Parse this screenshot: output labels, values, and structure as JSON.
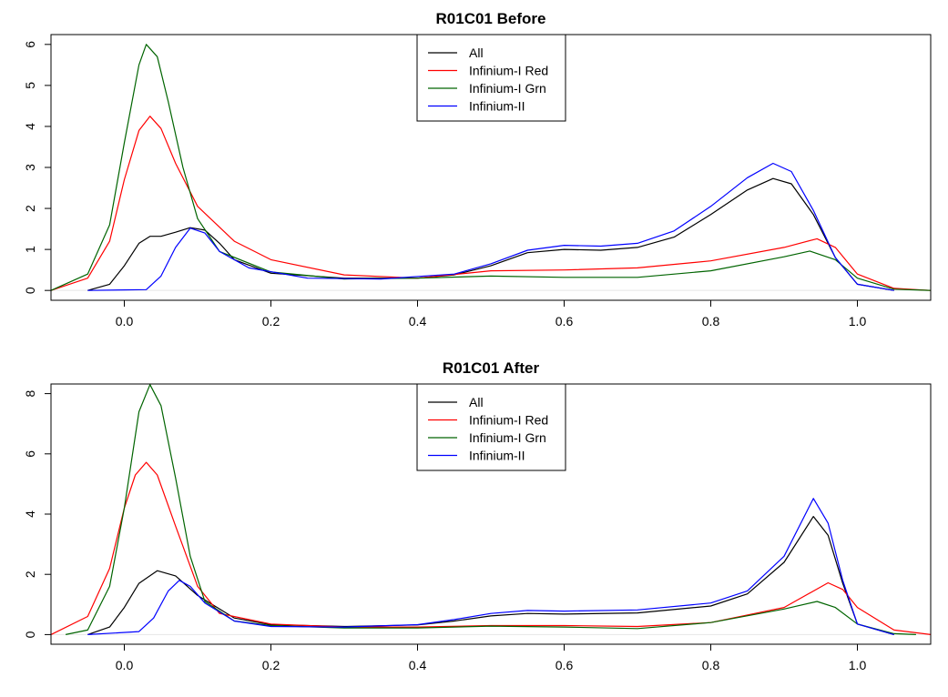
{
  "chart_data": [
    {
      "type": "line",
      "title": "R01C01 Before",
      "xlabel": "",
      "ylabel": "",
      "xlim": [
        -0.1,
        1.1
      ],
      "ylim": [
        0,
        6
      ],
      "x_ticks": [
        "0.0",
        "0.2",
        "0.4",
        "0.6",
        "0.8",
        "1.0"
      ],
      "y_ticks": [
        "0",
        "1",
        "2",
        "3",
        "4",
        "5",
        "6"
      ],
      "grid": false,
      "legend_position": "top-center",
      "series": [
        {
          "name": "All",
          "color": "#000000",
          "points": [
            [
              -0.05,
              0
            ],
            [
              -0.02,
              0.15
            ],
            [
              0.0,
              0.6
            ],
            [
              0.02,
              1.15
            ],
            [
              0.035,
              1.32
            ],
            [
              0.05,
              1.32
            ],
            [
              0.07,
              1.42
            ],
            [
              0.09,
              1.53
            ],
            [
              0.11,
              1.47
            ],
            [
              0.13,
              1.15
            ],
            [
              0.15,
              0.75
            ],
            [
              0.2,
              0.42
            ],
            [
              0.3,
              0.3
            ],
            [
              0.4,
              0.3
            ],
            [
              0.45,
              0.38
            ],
            [
              0.5,
              0.6
            ],
            [
              0.55,
              0.92
            ],
            [
              0.6,
              1.0
            ],
            [
              0.65,
              0.98
            ],
            [
              0.7,
              1.05
            ],
            [
              0.75,
              1.3
            ],
            [
              0.8,
              1.85
            ],
            [
              0.85,
              2.45
            ],
            [
              0.885,
              2.73
            ],
            [
              0.91,
              2.6
            ],
            [
              0.94,
              1.85
            ],
            [
              0.97,
              0.8
            ],
            [
              1.0,
              0.15
            ],
            [
              1.05,
              0
            ]
          ]
        },
        {
          "name": "Infinium-I Red",
          "color": "#ff0000",
          "points": [
            [
              -0.1,
              0
            ],
            [
              -0.05,
              0.3
            ],
            [
              -0.02,
              1.2
            ],
            [
              0.0,
              2.7
            ],
            [
              0.02,
              3.9
            ],
            [
              0.035,
              4.25
            ],
            [
              0.05,
              3.95
            ],
            [
              0.07,
              3.1
            ],
            [
              0.1,
              2.05
            ],
            [
              0.15,
              1.2
            ],
            [
              0.2,
              0.75
            ],
            [
              0.3,
              0.38
            ],
            [
              0.4,
              0.3
            ],
            [
              0.5,
              0.48
            ],
            [
              0.6,
              0.5
            ],
            [
              0.7,
              0.55
            ],
            [
              0.8,
              0.72
            ],
            [
              0.9,
              1.05
            ],
            [
              0.945,
              1.26
            ],
            [
              0.97,
              1.05
            ],
            [
              1.0,
              0.4
            ],
            [
              1.05,
              0.05
            ],
            [
              1.1,
              0
            ]
          ]
        },
        {
          "name": "Infinium-I Grn",
          "color": "#006400",
          "points": [
            [
              -0.1,
              0
            ],
            [
              -0.05,
              0.4
            ],
            [
              -0.02,
              1.6
            ],
            [
              0.0,
              3.6
            ],
            [
              0.02,
              5.5
            ],
            [
              0.03,
              6.0
            ],
            [
              0.045,
              5.7
            ],
            [
              0.06,
              4.6
            ],
            [
              0.08,
              3.0
            ],
            [
              0.1,
              1.75
            ],
            [
              0.13,
              0.95
            ],
            [
              0.2,
              0.45
            ],
            [
              0.3,
              0.28
            ],
            [
              0.4,
              0.3
            ],
            [
              0.5,
              0.35
            ],
            [
              0.6,
              0.32
            ],
            [
              0.7,
              0.32
            ],
            [
              0.8,
              0.48
            ],
            [
              0.9,
              0.82
            ],
            [
              0.935,
              0.96
            ],
            [
              0.97,
              0.75
            ],
            [
              1.0,
              0.3
            ],
            [
              1.05,
              0.03
            ],
            [
              1.1,
              0
            ]
          ]
        },
        {
          "name": "Infinium-II",
          "color": "#0000ff",
          "points": [
            [
              -0.05,
              0
            ],
            [
              0.03,
              0.02
            ],
            [
              0.05,
              0.35
            ],
            [
              0.07,
              1.05
            ],
            [
              0.09,
              1.52
            ],
            [
              0.11,
              1.4
            ],
            [
              0.13,
              0.95
            ],
            [
              0.17,
              0.55
            ],
            [
              0.25,
              0.3
            ],
            [
              0.35,
              0.28
            ],
            [
              0.45,
              0.4
            ],
            [
              0.5,
              0.65
            ],
            [
              0.55,
              0.98
            ],
            [
              0.6,
              1.1
            ],
            [
              0.65,
              1.08
            ],
            [
              0.7,
              1.15
            ],
            [
              0.75,
              1.45
            ],
            [
              0.8,
              2.05
            ],
            [
              0.85,
              2.75
            ],
            [
              0.885,
              3.1
            ],
            [
              0.91,
              2.9
            ],
            [
              0.94,
              1.95
            ],
            [
              0.97,
              0.8
            ],
            [
              1.0,
              0.15
            ],
            [
              1.05,
              0
            ]
          ]
        }
      ]
    },
    {
      "type": "line",
      "title": "R01C01 After",
      "xlabel": "",
      "ylabel": "",
      "xlim": [
        -0.1,
        1.1
      ],
      "ylim": [
        0,
        8
      ],
      "x_ticks": [
        "0.0",
        "0.2",
        "0.4",
        "0.6",
        "0.8",
        "1.0"
      ],
      "y_ticks": [
        "0",
        "2",
        "4",
        "6",
        "8"
      ],
      "grid": false,
      "legend_position": "top-center",
      "series": [
        {
          "name": "All",
          "color": "#000000",
          "points": [
            [
              -0.05,
              0
            ],
            [
              -0.02,
              0.25
            ],
            [
              0.0,
              0.9
            ],
            [
              0.02,
              1.7
            ],
            [
              0.045,
              2.12
            ],
            [
              0.07,
              1.95
            ],
            [
              0.1,
              1.3
            ],
            [
              0.15,
              0.55
            ],
            [
              0.2,
              0.33
            ],
            [
              0.3,
              0.27
            ],
            [
              0.4,
              0.32
            ],
            [
              0.45,
              0.45
            ],
            [
              0.5,
              0.62
            ],
            [
              0.55,
              0.7
            ],
            [
              0.6,
              0.68
            ],
            [
              0.7,
              0.72
            ],
            [
              0.8,
              0.95
            ],
            [
              0.85,
              1.35
            ],
            [
              0.9,
              2.4
            ],
            [
              0.94,
              3.92
            ],
            [
              0.96,
              3.3
            ],
            [
              0.98,
              1.7
            ],
            [
              1.0,
              0.35
            ],
            [
              1.05,
              0
            ]
          ]
        },
        {
          "name": "Infinium-I Red",
          "color": "#ff0000",
          "points": [
            [
              -0.1,
              0
            ],
            [
              -0.05,
              0.6
            ],
            [
              -0.02,
              2.2
            ],
            [
              0.0,
              4.2
            ],
            [
              0.015,
              5.3
            ],
            [
              0.03,
              5.72
            ],
            [
              0.045,
              5.3
            ],
            [
              0.07,
              3.6
            ],
            [
              0.1,
              1.6
            ],
            [
              0.13,
              0.7
            ],
            [
              0.2,
              0.35
            ],
            [
              0.3,
              0.25
            ],
            [
              0.4,
              0.25
            ],
            [
              0.5,
              0.3
            ],
            [
              0.6,
              0.3
            ],
            [
              0.7,
              0.27
            ],
            [
              0.8,
              0.4
            ],
            [
              0.9,
              0.9
            ],
            [
              0.96,
              1.72
            ],
            [
              0.98,
              1.5
            ],
            [
              1.0,
              0.9
            ],
            [
              1.05,
              0.15
            ],
            [
              1.1,
              0
            ]
          ]
        },
        {
          "name": "Infinium-I Grn",
          "color": "#006400",
          "points": [
            [
              -0.08,
              0
            ],
            [
              -0.05,
              0.15
            ],
            [
              -0.02,
              1.6
            ],
            [
              0.0,
              4.2
            ],
            [
              0.02,
              7.4
            ],
            [
              0.035,
              8.3
            ],
            [
              0.05,
              7.6
            ],
            [
              0.07,
              5.2
            ],
            [
              0.09,
              2.6
            ],
            [
              0.11,
              1.1
            ],
            [
              0.15,
              0.45
            ],
            [
              0.2,
              0.3
            ],
            [
              0.3,
              0.22
            ],
            [
              0.4,
              0.22
            ],
            [
              0.5,
              0.28
            ],
            [
              0.6,
              0.25
            ],
            [
              0.7,
              0.2
            ],
            [
              0.8,
              0.4
            ],
            [
              0.9,
              0.85
            ],
            [
              0.945,
              1.1
            ],
            [
              0.97,
              0.9
            ],
            [
              1.0,
              0.35
            ],
            [
              1.05,
              0.03
            ],
            [
              1.08,
              0
            ]
          ]
        },
        {
          "name": "Infinium-II",
          "color": "#0000ff",
          "points": [
            [
              -0.05,
              0
            ],
            [
              0.02,
              0.1
            ],
            [
              0.04,
              0.55
            ],
            [
              0.06,
              1.45
            ],
            [
              0.075,
              1.8
            ],
            [
              0.09,
              1.6
            ],
            [
              0.11,
              1.05
            ],
            [
              0.15,
              0.45
            ],
            [
              0.2,
              0.27
            ],
            [
              0.3,
              0.25
            ],
            [
              0.4,
              0.33
            ],
            [
              0.45,
              0.5
            ],
            [
              0.5,
              0.7
            ],
            [
              0.55,
              0.8
            ],
            [
              0.6,
              0.78
            ],
            [
              0.7,
              0.82
            ],
            [
              0.8,
              1.05
            ],
            [
              0.85,
              1.45
            ],
            [
              0.9,
              2.6
            ],
            [
              0.94,
              4.52
            ],
            [
              0.96,
              3.7
            ],
            [
              0.98,
              1.8
            ],
            [
              1.0,
              0.35
            ],
            [
              1.05,
              0
            ]
          ]
        }
      ]
    }
  ]
}
